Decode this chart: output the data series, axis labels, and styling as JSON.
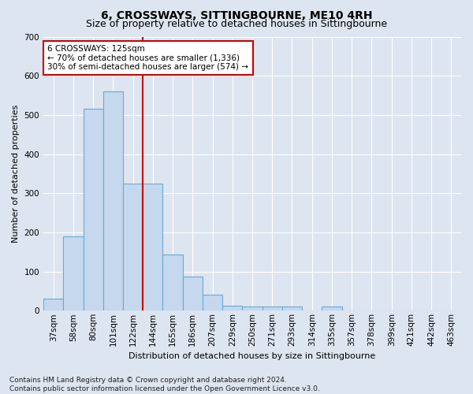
{
  "title": "6, CROSSWAYS, SITTINGBOURNE, ME10 4RH",
  "subtitle": "Size of property relative to detached houses in Sittingbourne",
  "xlabel": "Distribution of detached houses by size in Sittingbourne",
  "ylabel": "Number of detached properties",
  "categories": [
    "37sqm",
    "58sqm",
    "80sqm",
    "101sqm",
    "122sqm",
    "144sqm",
    "165sqm",
    "186sqm",
    "207sqm",
    "229sqm",
    "250sqm",
    "271sqm",
    "293sqm",
    "314sqm",
    "335sqm",
    "357sqm",
    "378sqm",
    "399sqm",
    "421sqm",
    "442sqm",
    "463sqm"
  ],
  "values": [
    30,
    190,
    515,
    560,
    325,
    325,
    143,
    87,
    40,
    13,
    10,
    10,
    10,
    0,
    10,
    0,
    0,
    0,
    0,
    0,
    0
  ],
  "bar_color": "#c5d8ee",
  "bar_edge_color": "#6aaad4",
  "vline_index": 4.5,
  "annotation_text": "6 CROSSWAYS: 125sqm\n← 70% of detached houses are smaller (1,336)\n30% of semi-detached houses are larger (574) →",
  "annotation_box_color": "#ffffff",
  "annotation_box_edge_color": "#cc0000",
  "vline_color": "#cc0000",
  "footer": "Contains HM Land Registry data © Crown copyright and database right 2024.\nContains public sector information licensed under the Open Government Licence v3.0.",
  "ylim": [
    0,
    700
  ],
  "yticks": [
    0,
    100,
    200,
    300,
    400,
    500,
    600,
    700
  ],
  "background_color": "#dde5f0",
  "plot_bg_color": "#dde5f0",
  "grid_color": "#ffffff",
  "title_fontsize": 10,
  "subtitle_fontsize": 9,
  "axis_label_fontsize": 8,
  "tick_fontsize": 7.5,
  "footer_fontsize": 6.5
}
